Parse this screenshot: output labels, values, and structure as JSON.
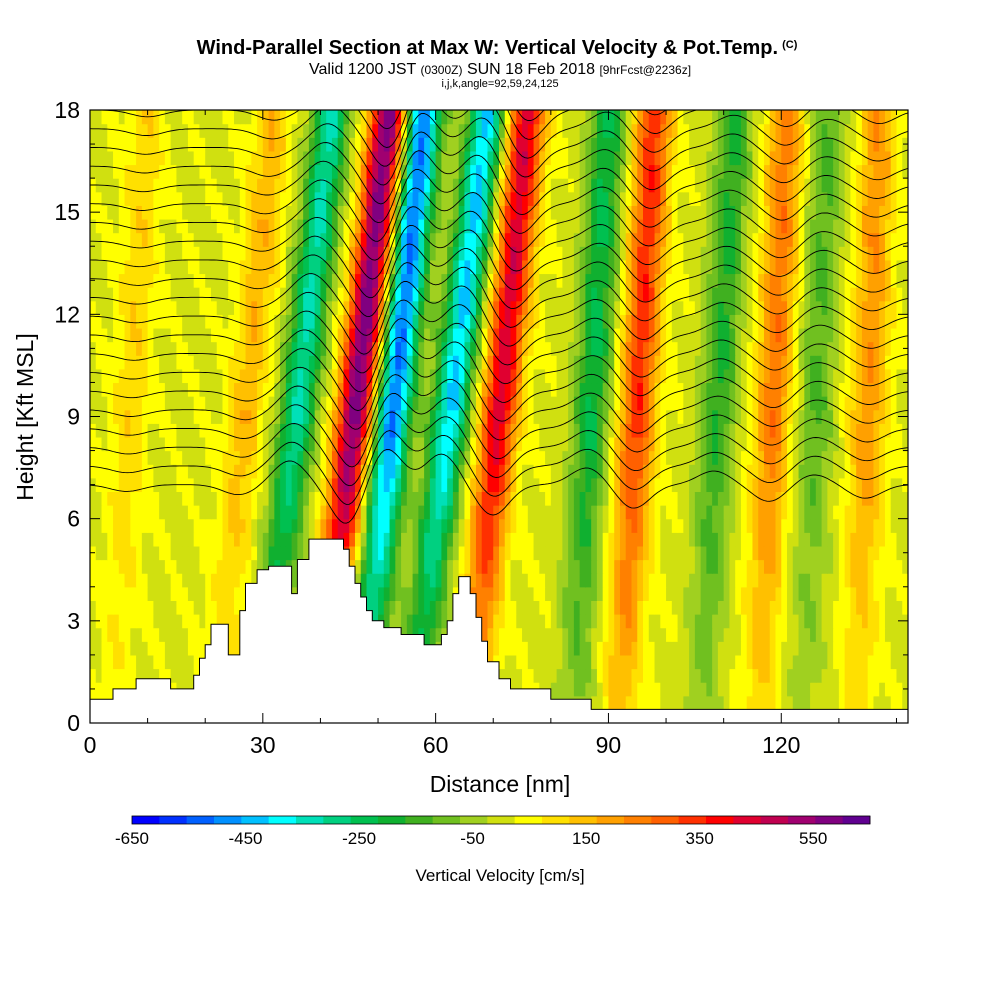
{
  "header": {
    "title": "Wind-Parallel Section at Max W: Vertical Velocity & Pot.Temp.",
    "title_mark": "(C)",
    "valid_a": "Valid 1200 JST",
    "valid_b": "(0300Z)",
    "valid_c": "SUN 18 Feb 2018",
    "valid_d": "[9hrFcst@2236z]",
    "params": "i,j,k,angle=92,59,24,125"
  },
  "chart_data": {
    "type": "heatmap",
    "xlabel": "Distance [nm]",
    "ylabel": "Height [Kft MSL]",
    "xlim": [
      0,
      142
    ],
    "ylim": [
      0,
      18
    ],
    "x_ticks": [
      0,
      30,
      60,
      90,
      120
    ],
    "y_ticks": [
      0,
      3,
      6,
      9,
      12,
      15,
      18
    ],
    "colorbar": {
      "label": "Vertical Velocity [cm/s]",
      "ticks": [
        -650,
        -450,
        -250,
        -50,
        150,
        350,
        550
      ],
      "min": -650,
      "max": 600,
      "step": 50,
      "colors": [
        "#0000ff",
        "#0030ff",
        "#0060ff",
        "#0090ff",
        "#00c0ff",
        "#00ffff",
        "#00e0b8",
        "#00d080",
        "#00c050",
        "#10b030",
        "#40b020",
        "#70c020",
        "#a0d020",
        "#d0e010",
        "#ffff00",
        "#ffe000",
        "#ffc000",
        "#ffa000",
        "#ff8000",
        "#ff6000",
        "#ff3000",
        "#ff0000",
        "#e00030",
        "#c00050",
        "#a00070",
        "#800080",
        "#600090"
      ]
    },
    "updraft_bands": [
      {
        "x_top": 52,
        "x_bottom": 40,
        "peak_w": 600
      },
      {
        "x_top": 76,
        "x_bottom": 66,
        "peak_w": 450
      },
      {
        "x_top": 98,
        "x_bottom": 92,
        "peak_w": 350
      },
      {
        "x_top": 121,
        "x_bottom": 116,
        "peak_w": 250
      },
      {
        "x_top": 137,
        "x_bottom": 133,
        "peak_w": 200
      },
      {
        "x_top": 32,
        "x_bottom": 22,
        "peak_w": 150
      },
      {
        "x_top": 10,
        "x_bottom": 4,
        "peak_w": 100
      }
    ],
    "downdraft_bands": [
      {
        "x_top": 42,
        "x_bottom": 30,
        "peak_w": -350
      },
      {
        "x_top": 58,
        "x_bottom": 47,
        "peak_w": -550
      },
      {
        "x_top": 69,
        "x_bottom": 56,
        "peak_w": -450
      },
      {
        "x_top": 90,
        "x_bottom": 84,
        "peak_w": -250
      },
      {
        "x_top": 112,
        "x_bottom": 106,
        "peak_w": -200
      },
      {
        "x_top": 128,
        "x_bottom": 124,
        "peak_w": -150
      }
    ],
    "terrain_kft": [
      [
        0,
        0.7
      ],
      [
        4,
        0.7
      ],
      [
        4,
        1.0
      ],
      [
        8,
        1.0
      ],
      [
        8,
        1.3
      ],
      [
        14,
        1.3
      ],
      [
        14,
        1.0
      ],
      [
        18,
        1.0
      ],
      [
        18,
        1.4
      ],
      [
        19,
        1.4
      ],
      [
        19,
        1.9
      ],
      [
        20,
        1.9
      ],
      [
        20,
        2.3
      ],
      [
        21,
        2.3
      ],
      [
        21,
        2.9
      ],
      [
        24,
        2.9
      ],
      [
        24,
        2.0
      ],
      [
        26,
        2.0
      ],
      [
        26,
        3.3
      ],
      [
        27,
        3.3
      ],
      [
        27,
        4.1
      ],
      [
        29,
        4.1
      ],
      [
        29,
        4.5
      ],
      [
        31,
        4.5
      ],
      [
        31,
        4.6
      ],
      [
        35,
        4.6
      ],
      [
        35,
        3.8
      ],
      [
        36,
        3.8
      ],
      [
        36,
        4.8
      ],
      [
        38,
        4.8
      ],
      [
        38,
        5.4
      ],
      [
        44,
        5.4
      ],
      [
        44,
        5.1
      ],
      [
        45,
        5.1
      ],
      [
        45,
        4.6
      ],
      [
        46,
        4.6
      ],
      [
        46,
        4.1
      ],
      [
        47,
        4.1
      ],
      [
        47,
        3.7
      ],
      [
        48,
        3.7
      ],
      [
        48,
        3.3
      ],
      [
        49,
        3.3
      ],
      [
        49,
        3.0
      ],
      [
        51,
        3.0
      ],
      [
        51,
        2.8
      ],
      [
        54,
        2.8
      ],
      [
        54,
        2.6
      ],
      [
        58,
        2.6
      ],
      [
        58,
        2.3
      ],
      [
        61,
        2.3
      ],
      [
        61,
        2.6
      ],
      [
        62,
        2.6
      ],
      [
        62,
        3.0
      ],
      [
        63,
        3.0
      ],
      [
        63,
        3.8
      ],
      [
        64,
        3.8
      ],
      [
        64,
        4.3
      ],
      [
        66,
        4.3
      ],
      [
        66,
        3.8
      ],
      [
        67,
        3.8
      ],
      [
        67,
        3.1
      ],
      [
        68,
        3.1
      ],
      [
        68,
        2.4
      ],
      [
        69,
        2.4
      ],
      [
        69,
        1.8
      ],
      [
        71,
        1.8
      ],
      [
        71,
        1.3
      ],
      [
        73,
        1.3
      ],
      [
        73,
        1.0
      ],
      [
        80,
        1.0
      ],
      [
        80,
        0.7
      ],
      [
        87,
        0.7
      ],
      [
        87,
        0.4
      ],
      [
        142,
        0.4
      ]
    ],
    "theta_isentropes": {
      "count": 30,
      "base_kft": 7.0,
      "spacing_kft": 0.55
    }
  }
}
